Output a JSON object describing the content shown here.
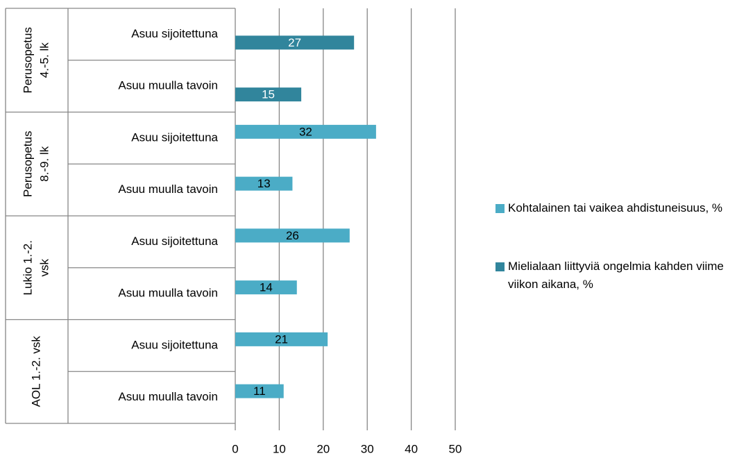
{
  "chart_data": {
    "type": "hbar",
    "groups": [
      {
        "name": [
          "Perusopetus",
          "4.-5. lk"
        ],
        "categories": [
          "Asuu sijoitettuna",
          "Asuu muulla tavoin"
        ]
      },
      {
        "name": [
          "Perusopetus",
          "8.-9. lk"
        ],
        "categories": [
          "Asuu sijoitettuna",
          "Asuu muulla tavoin"
        ]
      },
      {
        "name": [
          "Lukio 1.-2.",
          "vsk"
        ],
        "categories": [
          "Asuu sijoitettuna",
          "Asuu muulla tavoin"
        ]
      },
      {
        "name": [
          "AOL 1.-2. vsk"
        ],
        "categories": [
          "Asuu sijoitettuna",
          "Asuu muulla tavoin"
        ]
      }
    ],
    "series": [
      {
        "name": "Kohtalainen tai vaikea ahdistuneisuus, %",
        "color": "#4bacc6",
        "label_color": "#000000",
        "values": [
          null,
          null,
          32,
          13,
          26,
          14,
          21,
          11
        ]
      },
      {
        "name": "Mielialaan liittyviä ongelmia kahden viime viikon aikana, %",
        "color": "#31859c",
        "label_color": "#ffffff",
        "values": [
          27,
          15,
          null,
          null,
          null,
          null,
          null,
          null
        ]
      }
    ],
    "xlim": [
      0,
      50
    ],
    "xticks": [
      0,
      10,
      20,
      30,
      40,
      50
    ],
    "grid": true,
    "legend": "right"
  }
}
